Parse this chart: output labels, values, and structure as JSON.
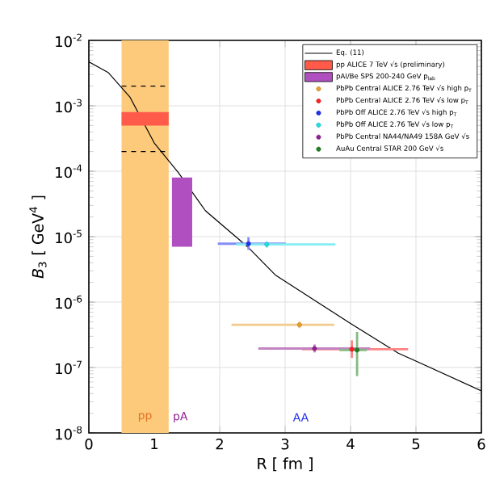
{
  "chart_data": {
    "type": "scatter",
    "xlabel": "R [ fm ]",
    "ylabel": "*B*$_{3}$ [ GeV$^{4}$ ]",
    "log": "y",
    "grid": true,
    "legend": "top right",
    "xlim": [
      0,
      6
    ],
    "ylim": [
      1e-08,
      0.01
    ],
    "xticks": [
      0,
      1,
      2,
      3,
      4,
      5,
      6
    ],
    "yticks": [
      {
        "value": 1e-08,
        "label": "10$^{-8}$"
      },
      {
        "value": 1e-07,
        "label": "10$^{-7}$"
      },
      {
        "value": 1e-06,
        "label": "10$^{-6}$"
      },
      {
        "value": 1e-05,
        "label": "10$^{-5}$"
      },
      {
        "value": 0.0001,
        "label": "10$^{-4}$"
      },
      {
        "value": 0.001,
        "label": "10$^{-3}$"
      },
      {
        "value": 0.01,
        "label": "10$^{-2}$"
      }
    ],
    "bands": [
      {
        "axis": "x",
        "from": 0.5,
        "to": 1.22,
        "color": "#fdca7c"
      }
    ],
    "annotations": [
      "pp",
      "pA",
      "AA"
    ],
    "series": [
      {
        "type": "line",
        "name": "Eq. (11)",
        "color": "#000000",
        "line_style": "solid",
        "marker": "none",
        "x": [
          0,
          0.3,
          0.63,
          1.0,
          1.37,
          1.78,
          2.44,
          2.85,
          4.0,
          4.73,
          6.0
        ],
        "values": [
          0.0047,
          0.0032,
          0.00135,
          0.00027,
          9.5e-05,
          2.5e-05,
          6.8e-06,
          2.6e-06,
          4.7e-07,
          1.66e-07,
          4.4e-08
        ]
      },
      {
        "type": "line",
        "color": "#000000",
        "line_style": "dashed",
        "marker": "none",
        "x": [
          0.5,
          1.22
        ],
        "values": [
          0.002,
          0.002
        ]
      },
      {
        "type": "line",
        "color": "#000000",
        "line_style": "dashed",
        "marker": "none",
        "x": [
          0.5,
          1.22
        ],
        "values": [
          0.0002,
          0.0002
        ]
      },
      {
        "type": "bar",
        "name": "pp ALICE 7 TeV √s (preliminary)",
        "color": "#ff5a4a",
        "x": [
          0.86
        ],
        "values": [
          0.0003
        ],
        "base": [
          0.0005
        ]
      },
      {
        "type": "bar",
        "name": "pAl/Be SPS 200-240 GeV p$_{lab}$",
        "color": "#b050c0",
        "x": [
          1.425
        ],
        "values": [
          7.3e-05
        ],
        "base": [
          7e-06
        ]
      },
      {
        "name": "PbPb Central ALICE 2.76 TeV √s high p$_{T}$",
        "color": "#e8a030",
        "marker": "circle",
        "x": [
          3.22
        ],
        "values": [
          4.5e-07
        ],
        "xerrors": [
          [
            2.18,
            3.75
          ]
        ],
        "errors": [
          [
            4e-07,
            5e-07
          ]
        ]
      },
      {
        "name": "PbPb Central ALICE 2.76 TeV √s low p$_{T}$",
        "color": "#ff2020",
        "marker": "circle",
        "x": [
          4.02
        ],
        "values": [
          1.9e-07
        ],
        "xerrors": [
          [
            3.26,
            4.88
          ]
        ],
        "errors": [
          [
            1.4e-07,
            2.6e-07
          ]
        ]
      },
      {
        "name": "PbPb Off ALICE 2.76 TeV √s high p$_{T}$",
        "color": "#2030ee",
        "marker": "circle",
        "x": [
          2.44
        ],
        "values": [
          7.8e-06
        ],
        "xerrors": [
          [
            1.97,
            3.01
          ]
        ],
        "errors": [
          [
            6.3e-06,
            9.8e-06
          ]
        ]
      },
      {
        "name": "PbPb Off ALICE 2.76 TeV √s low p$_{T}$",
        "color": "#20e0e8",
        "marker": "circle",
        "x": [
          2.72
        ],
        "values": [
          7.6e-06
        ],
        "xerrors": [
          [
            2.25,
            3.77
          ]
        ],
        "errors": [
          [
            6.8e-06,
            8.5e-06
          ]
        ]
      },
      {
        "name": "PbPb Central NA44/NA49 158A GeV √s",
        "color": "#902090",
        "marker": "circle",
        "x": [
          3.45
        ],
        "values": [
          1.95e-07
        ],
        "xerrors": [
          [
            2.59,
            4.3
          ]
        ],
        "errors": [
          [
            1.7e-07,
            2.25e-07
          ]
        ]
      },
      {
        "name": "AuAu Central STAR 200 GeV √s",
        "color": "#208020",
        "marker": "circle",
        "x": [
          4.1
        ],
        "values": [
          1.85e-07
        ],
        "xerrors": [
          [
            3.83,
            4.25
          ]
        ],
        "errors": [
          [
            7.4e-08,
            3.5e-07
          ]
        ]
      }
    ]
  }
}
